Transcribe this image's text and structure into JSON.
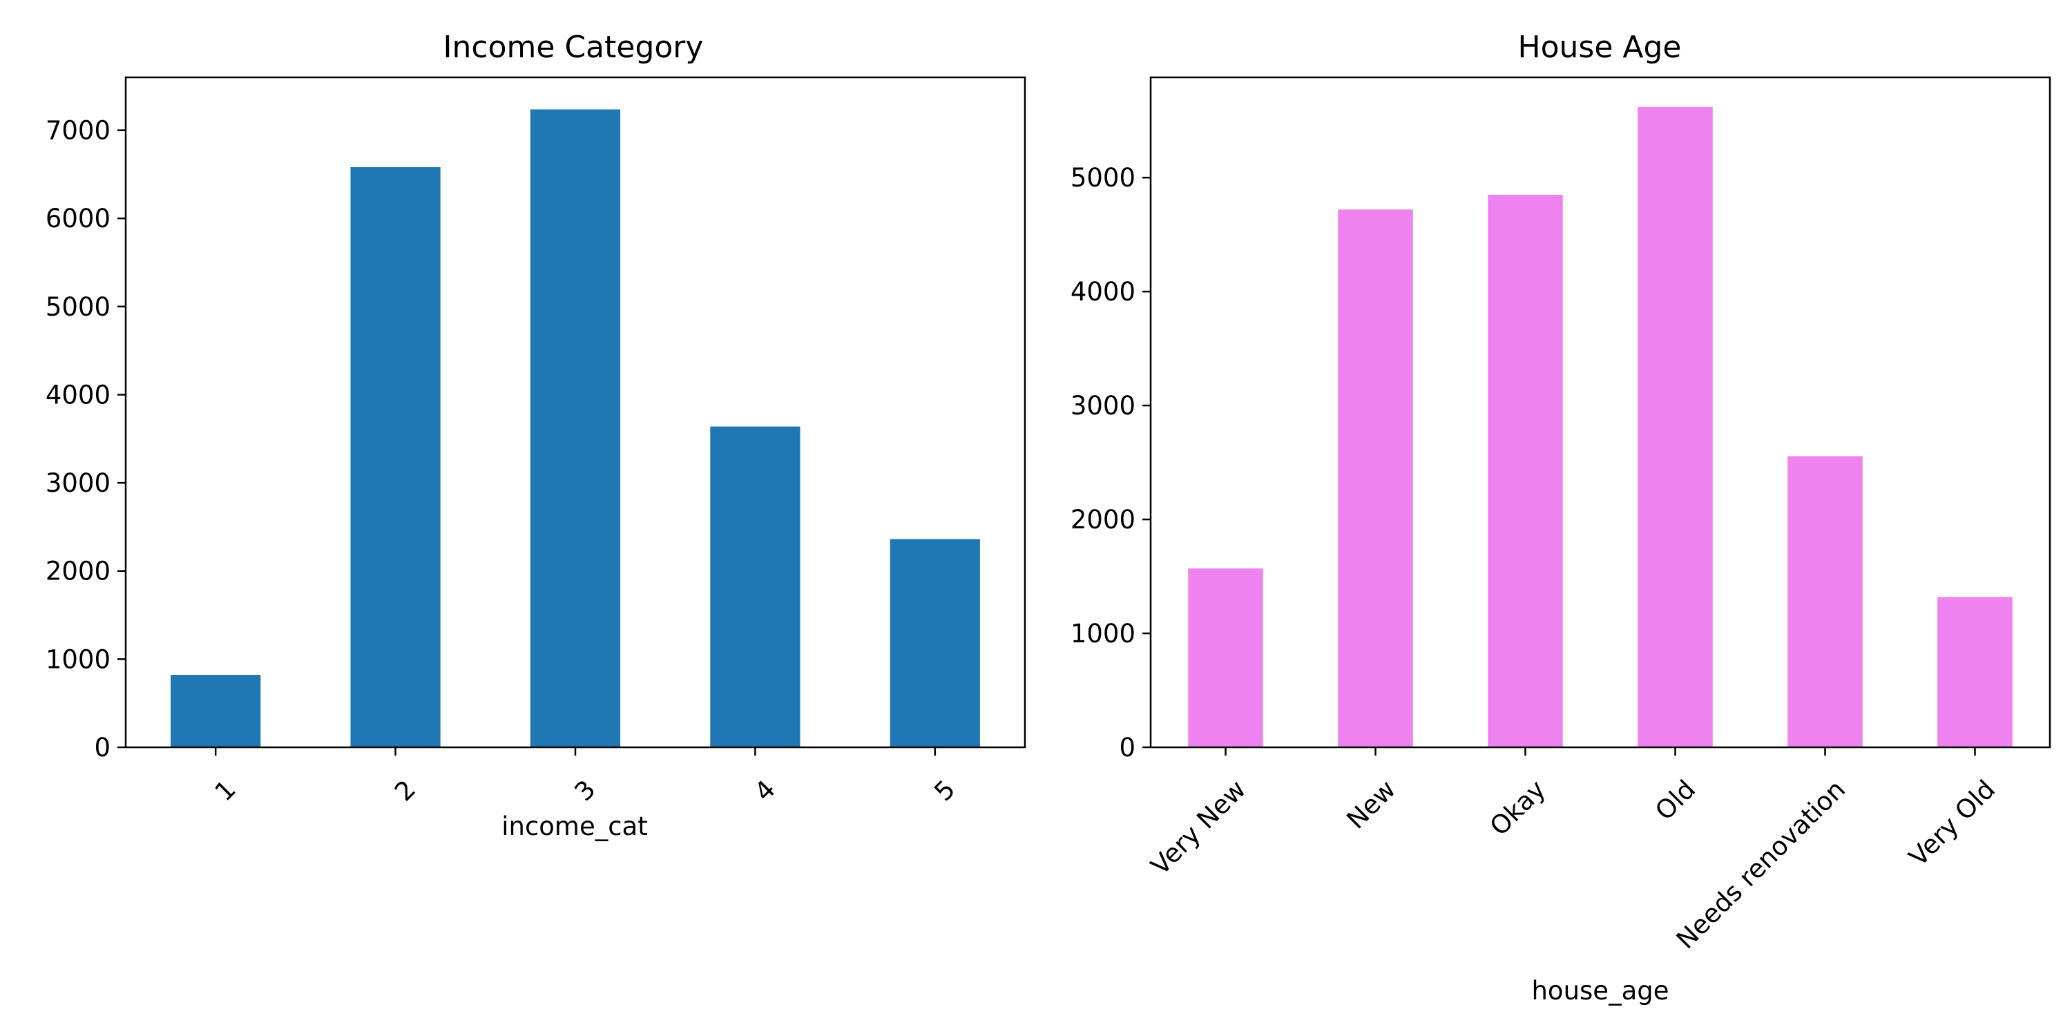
{
  "chart_data": [
    {
      "type": "bar",
      "title": "Income Category",
      "xlabel": "income_cat",
      "ylabel": "",
      "categories": [
        "1",
        "2",
        "3",
        "4",
        "5"
      ],
      "values": [
        822,
        6581,
        7236,
        3639,
        2362
      ],
      "ylim": [
        0,
        7600
      ],
      "yticks": [
        "0",
        "1000",
        "2000",
        "3000",
        "4000",
        "5000",
        "6000",
        "7000"
      ],
      "color": "#1f77b4",
      "grid": false,
      "legend": "none"
    },
    {
      "type": "bar",
      "title": "House Age",
      "xlabel": "house_age",
      "ylabel": "",
      "categories": [
        "Very New",
        "New",
        "Okay",
        "Old",
        "Needs renovation",
        "Very Old"
      ],
      "values": [
        1570,
        4720,
        4850,
        5620,
        2555,
        1320
      ],
      "ylim": [
        0,
        5880
      ],
      "yticks": [
        "0",
        "1000",
        "2000",
        "3000",
        "4000",
        "5000"
      ],
      "color": "#ee82ee",
      "grid": false,
      "legend": "none"
    }
  ]
}
